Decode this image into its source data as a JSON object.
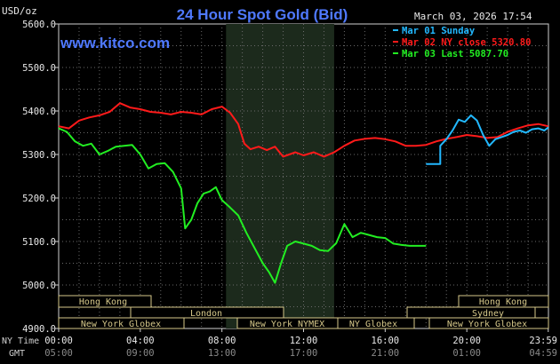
{
  "header": {
    "ylabel": "USD/oz",
    "title": "24 Hour Spot Gold (Bid)",
    "timestamp": "March 03, 2026 17:54",
    "watermark": "www.kitco.com"
  },
  "legend": [
    {
      "label": "Mar 01 Sunday",
      "color": "#22b8ff"
    },
    {
      "label": "Mar 02 NY close 5320.80",
      "color": "#ff1a1a"
    },
    {
      "label": "Mar 03 Last 5087.70",
      "color": "#22ee22"
    }
  ],
  "axis": {
    "nytime_label": "NY Time",
    "gmt_label": "GMT",
    "y_ticks": [
      "5600.0",
      "5500.0",
      "5400.0",
      "5300.0",
      "5200.0",
      "5100.0",
      "5000.0",
      "4900.0"
    ],
    "x_ticks_ny": [
      "00:00",
      "04:00",
      "08:00",
      "12:00",
      "16:00",
      "20:00",
      "23:59"
    ],
    "x_ticks_gmt": [
      "05:00",
      "09:00",
      "13:00",
      "17:00",
      "21:00",
      "01:00",
      "04:59"
    ]
  },
  "sessions": {
    "hongkong": "Hong Kong",
    "london": "London",
    "nyglobex": "New York Globex",
    "nynymex": "New York NYMEX",
    "nyglobex2": "NY Globex",
    "hongkong2": "Hong Kong",
    "sydney": "Sydney",
    "nyglobex3": "New York Globex"
  },
  "chart_data": {
    "type": "line",
    "title": "24 Hour Spot Gold (Bid)",
    "ylabel": "USD/oz",
    "ylim": [
      4900,
      5600
    ],
    "xlim": [
      0,
      24
    ],
    "x_unit": "hours (NY time)",
    "grid": true,
    "legend_position": "top-right",
    "shaded_region": [
      8.2,
      13.5
    ],
    "series": [
      {
        "name": "Mar 01 Sunday",
        "color": "#22b8ff",
        "x": [
          18.0,
          18.7,
          18.7,
          19.0,
          19.3,
          19.6,
          19.9,
          20.2,
          20.5,
          20.8,
          21.1,
          21.4,
          21.7,
          22.0,
          22.3,
          22.6,
          22.9,
          23.2,
          23.5,
          23.8,
          23.99
        ],
        "y": [
          5278,
          5278,
          5320,
          5335,
          5355,
          5380,
          5375,
          5390,
          5378,
          5345,
          5320,
          5335,
          5340,
          5345,
          5352,
          5355,
          5350,
          5358,
          5360,
          5355,
          5362
        ]
      },
      {
        "name": "Mar 02 NY close 5320.80",
        "color": "#ff1a1a",
        "x": [
          0.0,
          0.5,
          1.0,
          1.5,
          2.0,
          2.5,
          3.0,
          3.5,
          4.0,
          4.5,
          5.0,
          5.5,
          6.0,
          6.5,
          7.0,
          7.5,
          8.0,
          8.4,
          8.8,
          9.1,
          9.4,
          9.8,
          10.2,
          10.6,
          11.0,
          11.3,
          11.6,
          12.0,
          12.5,
          13.0,
          13.5,
          14.0,
          14.5,
          15.0,
          15.5,
          16.0,
          16.5,
          17.0,
          17.5,
          18.0,
          18.5,
          19.0,
          19.5,
          20.0,
          20.5,
          21.0,
          21.5,
          22.0,
          22.5,
          23.0,
          23.5,
          23.99
        ],
        "y": [
          5365,
          5360,
          5378,
          5385,
          5390,
          5398,
          5418,
          5408,
          5404,
          5398,
          5396,
          5392,
          5398,
          5396,
          5392,
          5404,
          5410,
          5396,
          5370,
          5325,
          5312,
          5318,
          5310,
          5318,
          5295,
          5300,
          5305,
          5298,
          5305,
          5295,
          5305,
          5320,
          5332,
          5336,
          5338,
          5335,
          5330,
          5320,
          5320,
          5322,
          5330,
          5336,
          5340,
          5345,
          5342,
          5338,
          5340,
          5352,
          5360,
          5367,
          5370,
          5365
        ]
      },
      {
        "name": "Mar 03 Last 5087.70",
        "color": "#22ee22",
        "x": [
          0.0,
          0.4,
          0.8,
          1.2,
          1.6,
          2.0,
          2.4,
          2.8,
          3.2,
          3.6,
          4.0,
          4.4,
          4.8,
          5.2,
          5.6,
          6.0,
          6.2,
          6.5,
          6.8,
          7.1,
          7.4,
          7.7,
          8.0,
          8.4,
          8.8,
          9.2,
          9.6,
          10.0,
          10.3,
          10.6,
          10.9,
          11.2,
          11.6,
          12.0,
          12.4,
          12.8,
          13.2,
          13.6,
          14.0,
          14.4,
          14.8,
          15.2,
          15.6,
          16.0,
          16.4,
          16.8,
          17.2,
          17.6,
          18.0
        ],
        "y": [
          5360,
          5352,
          5330,
          5320,
          5325,
          5300,
          5308,
          5318,
          5320,
          5322,
          5300,
          5268,
          5278,
          5280,
          5260,
          5222,
          5130,
          5150,
          5188,
          5210,
          5215,
          5225,
          5195,
          5178,
          5160,
          5120,
          5085,
          5050,
          5030,
          5005,
          5050,
          5090,
          5100,
          5095,
          5090,
          5080,
          5078,
          5096,
          5140,
          5110,
          5120,
          5115,
          5110,
          5108,
          5095,
          5092,
          5090,
          5090,
          5090
        ]
      }
    ]
  }
}
